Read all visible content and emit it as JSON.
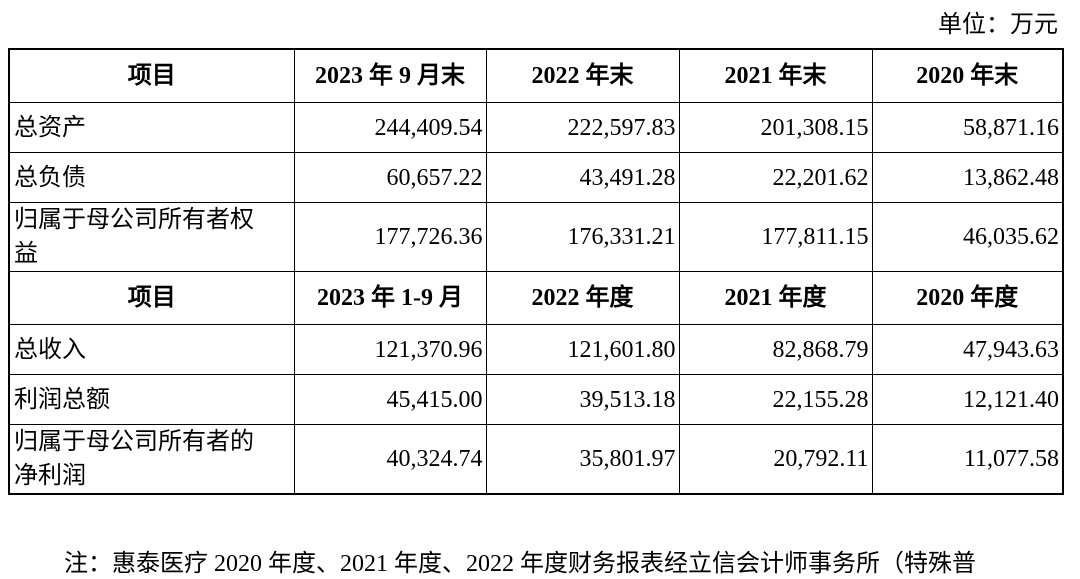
{
  "unit": "单位：万元",
  "table": {
    "sections": [
      {
        "header": [
          "项目",
          "2023 年 9 月末",
          "2022 年末",
          "2021 年末",
          "2020 年末"
        ],
        "rows": [
          [
            "总资产",
            "244,409.54",
            "222,597.83",
            "201,308.15",
            "58,871.16"
          ],
          [
            "总负债",
            "60,657.22",
            "43,491.28",
            "22,201.62",
            "13,862.48"
          ],
          [
            "归属于母公司所有者权益",
            "177,726.36",
            "176,331.21",
            "177,811.15",
            "46,035.62"
          ]
        ]
      },
      {
        "header": [
          "项目",
          "2023 年 1-9 月",
          "2022 年度",
          "2021 年度",
          "2020 年度"
        ],
        "rows": [
          [
            "总收入",
            "121,370.96",
            "121,601.80",
            "82,868.79",
            "47,943.63"
          ],
          [
            "利润总额",
            "45,415.00",
            "39,513.18",
            "22,155.28",
            "12,121.40"
          ],
          [
            "归属于母公司所有者的净利润",
            "40,324.74",
            "35,801.97",
            "20,792.11",
            "11,077.58"
          ]
        ]
      }
    ]
  },
  "footnote": "注：惠泰医疗 2020 年度、2021 年度、2022 年度财务报表经立信会计师事务所（特殊普"
}
